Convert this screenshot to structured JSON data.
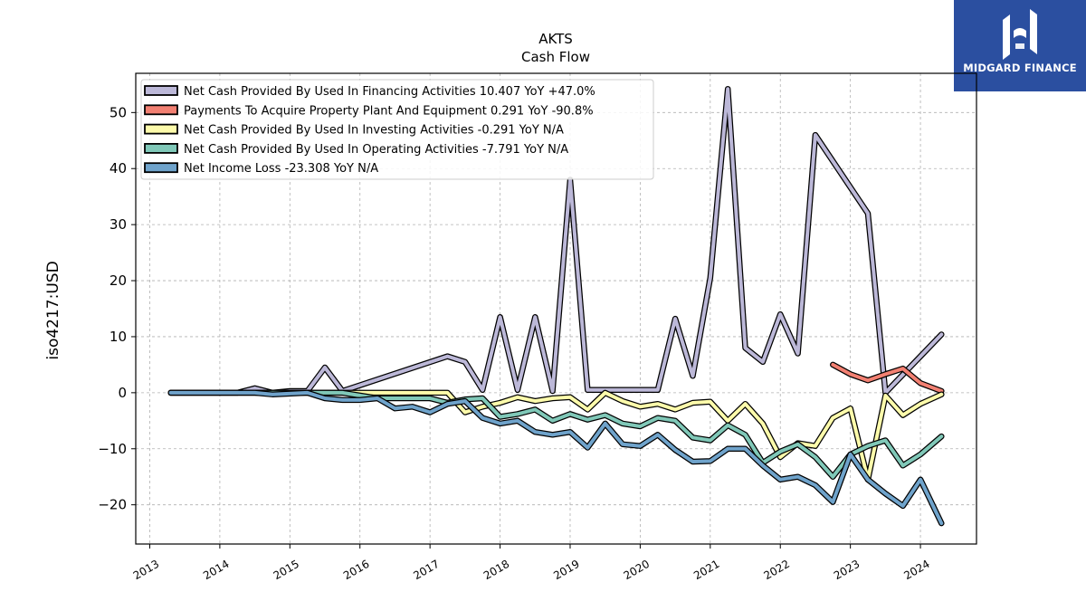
{
  "header": {
    "title": "AKTS",
    "subtitle": "Cash Flow"
  },
  "logo": {
    "text": "MIDGARD FINANCE",
    "bg_color": "#2b4fa0"
  },
  "chart_data": {
    "type": "line",
    "title": "AKTS",
    "subtitle": "Cash Flow",
    "xlabel": "",
    "ylabel": "iso4217:USD",
    "xlim": [
      2012.8,
      2024.8
    ],
    "ylim": [
      -27,
      57
    ],
    "x_ticks": [
      "2013",
      "2014",
      "2015",
      "2016",
      "2017",
      "2018",
      "2019",
      "2020",
      "2021",
      "2022",
      "2023",
      "2024"
    ],
    "x_tick_values": [
      2013,
      2014,
      2015,
      2016,
      2017,
      2018,
      2019,
      2020,
      2021,
      2022,
      2023,
      2024
    ],
    "y_ticks": [
      "−20",
      "−10",
      "0",
      "10",
      "20",
      "30",
      "40",
      "50"
    ],
    "y_tick_values": [
      -20,
      -10,
      0,
      10,
      20,
      30,
      40,
      50
    ],
    "grid": true,
    "legend_position": "top-left",
    "series": [
      {
        "name": "Net Cash Provided By Used In Financing Activities",
        "legend": "Net Cash Provided By Used In Financing Activities  10.407 YoY +47.0%",
        "color": "#bcb8d8",
        "points": [
          [
            2013.3,
            0
          ],
          [
            2013.5,
            0
          ],
          [
            2013.75,
            0
          ],
          [
            2014.0,
            0
          ],
          [
            2014.25,
            0
          ],
          [
            2014.5,
            0.8
          ],
          [
            2014.75,
            0
          ],
          [
            2015.0,
            0.3
          ],
          [
            2015.25,
            0.3
          ],
          [
            2015.5,
            4.5
          ],
          [
            2015.75,
            0.3
          ],
          [
            2017.25,
            6.5
          ],
          [
            2017.5,
            5.5
          ],
          [
            2017.75,
            0.5
          ],
          [
            2018.0,
            13.5
          ],
          [
            2018.25,
            0.5
          ],
          [
            2018.5,
            13.5
          ],
          [
            2018.75,
            0.3
          ],
          [
            2019.0,
            38
          ],
          [
            2019.25,
            0.5
          ],
          [
            2020.25,
            0.5
          ],
          [
            2020.5,
            13.2
          ],
          [
            2020.75,
            3
          ],
          [
            2021.0,
            20.5
          ],
          [
            2021.25,
            54.2
          ],
          [
            2021.5,
            8
          ],
          [
            2021.75,
            5.5
          ],
          [
            2022.0,
            14
          ],
          [
            2022.25,
            7
          ],
          [
            2022.5,
            46
          ],
          [
            2023.25,
            32
          ],
          [
            2023.5,
            0
          ],
          [
            2024.3,
            10.4
          ]
        ]
      },
      {
        "name": "Payments To Acquire Property Plant And Equipment",
        "legend": "Payments To Acquire Property Plant And Equipment  0.291 YoY -90.8%",
        "color": "#f28072",
        "points": [
          [
            2022.75,
            5
          ],
          [
            2023.0,
            3.3
          ],
          [
            2023.25,
            2.2
          ],
          [
            2023.5,
            3.3
          ],
          [
            2023.75,
            4.3
          ],
          [
            2024.0,
            1.7
          ],
          [
            2024.3,
            0.3
          ]
        ]
      },
      {
        "name": "Net Cash Provided By Used In Investing Activities",
        "legend": "Net Cash Provided By Used In Investing Activities  -0.291 YoY N/A",
        "color": "#fdfbab",
        "points": [
          [
            2013.3,
            0
          ],
          [
            2016.75,
            0
          ],
          [
            2017.0,
            0
          ],
          [
            2017.25,
            0
          ],
          [
            2017.5,
            -3.5
          ],
          [
            2017.75,
            -2.5
          ],
          [
            2018.0,
            -1.8
          ],
          [
            2018.25,
            -0.8
          ],
          [
            2018.5,
            -1.5
          ],
          [
            2018.75,
            -1
          ],
          [
            2019.0,
            -0.8
          ],
          [
            2019.25,
            -3
          ],
          [
            2019.5,
            0
          ],
          [
            2019.75,
            -1.5
          ],
          [
            2020.0,
            -2.5
          ],
          [
            2020.25,
            -2
          ],
          [
            2020.5,
            -3
          ],
          [
            2020.75,
            -1.8
          ],
          [
            2021.0,
            -1.6
          ],
          [
            2021.25,
            -5
          ],
          [
            2021.5,
            -2
          ],
          [
            2021.75,
            -5.5
          ],
          [
            2022.0,
            -11.5
          ],
          [
            2022.25,
            -9
          ],
          [
            2022.5,
            -9.5
          ],
          [
            2022.75,
            -4.5
          ],
          [
            2023.0,
            -2.8
          ],
          [
            2023.25,
            -15.5
          ],
          [
            2023.5,
            -0.5
          ],
          [
            2023.75,
            -4
          ],
          [
            2024.0,
            -2
          ],
          [
            2024.3,
            -0.3
          ]
        ]
      },
      {
        "name": "Net Cash Provided By Used In Operating Activities",
        "legend": "Net Cash Provided By Used In Operating Activities  -7.791 YoY N/A",
        "color": "#80c8b8",
        "points": [
          [
            2013.3,
            0
          ],
          [
            2015.75,
            0
          ],
          [
            2016.25,
            -1
          ],
          [
            2017.0,
            -1
          ],
          [
            2017.25,
            -1.8
          ],
          [
            2017.5,
            -1.2
          ],
          [
            2017.75,
            -1
          ],
          [
            2018.0,
            -4.3
          ],
          [
            2018.25,
            -3.8
          ],
          [
            2018.5,
            -3
          ],
          [
            2018.75,
            -5
          ],
          [
            2019.0,
            -3.8
          ],
          [
            2019.25,
            -4.8
          ],
          [
            2019.5,
            -4
          ],
          [
            2019.75,
            -5.5
          ],
          [
            2020.0,
            -6
          ],
          [
            2020.25,
            -4.5
          ],
          [
            2020.5,
            -5
          ],
          [
            2020.75,
            -8
          ],
          [
            2021.0,
            -8.5
          ],
          [
            2021.25,
            -5.8
          ],
          [
            2021.5,
            -7.5
          ],
          [
            2021.75,
            -12.5
          ],
          [
            2022.0,
            -10.5
          ],
          [
            2022.25,
            -9.2
          ],
          [
            2022.5,
            -11.5
          ],
          [
            2022.75,
            -15
          ],
          [
            2023.0,
            -11
          ],
          [
            2023.25,
            -9.5
          ],
          [
            2023.5,
            -8.5
          ],
          [
            2023.75,
            -13
          ],
          [
            2024.0,
            -11
          ],
          [
            2024.3,
            -7.8
          ]
        ]
      },
      {
        "name": "Net Income Loss",
        "legend": "Net Income Loss  -23.308 YoY N/A",
        "color": "#6fa3cb",
        "points": [
          [
            2013.3,
            0
          ],
          [
            2014.5,
            0
          ],
          [
            2014.75,
            -0.3
          ],
          [
            2015.25,
            0
          ],
          [
            2015.5,
            -1
          ],
          [
            2015.75,
            -1.3
          ],
          [
            2016.0,
            -1.3
          ],
          [
            2016.25,
            -1
          ],
          [
            2016.5,
            -2.8
          ],
          [
            2016.75,
            -2.5
          ],
          [
            2017.0,
            -3.5
          ],
          [
            2017.25,
            -2
          ],
          [
            2017.5,
            -1.5
          ],
          [
            2017.75,
            -4.5
          ],
          [
            2018.0,
            -5.5
          ],
          [
            2018.25,
            -5
          ],
          [
            2018.5,
            -7
          ],
          [
            2018.75,
            -7.5
          ],
          [
            2019.0,
            -7
          ],
          [
            2019.25,
            -9.8
          ],
          [
            2019.5,
            -5.5
          ],
          [
            2019.75,
            -9.2
          ],
          [
            2020.0,
            -9.5
          ],
          [
            2020.25,
            -7.5
          ],
          [
            2020.5,
            -10.2
          ],
          [
            2020.75,
            -12.3
          ],
          [
            2021.0,
            -12.2
          ],
          [
            2021.25,
            -10
          ],
          [
            2021.5,
            -10
          ],
          [
            2021.75,
            -13
          ],
          [
            2022.0,
            -15.5
          ],
          [
            2022.25,
            -15
          ],
          [
            2022.5,
            -16.5
          ],
          [
            2022.75,
            -19.5
          ],
          [
            2023.0,
            -11
          ],
          [
            2023.25,
            -15.5
          ],
          [
            2023.5,
            -18
          ],
          [
            2023.75,
            -20.2
          ],
          [
            2024.0,
            -15.5
          ],
          [
            2024.3,
            -23.3
          ]
        ]
      }
    ]
  }
}
